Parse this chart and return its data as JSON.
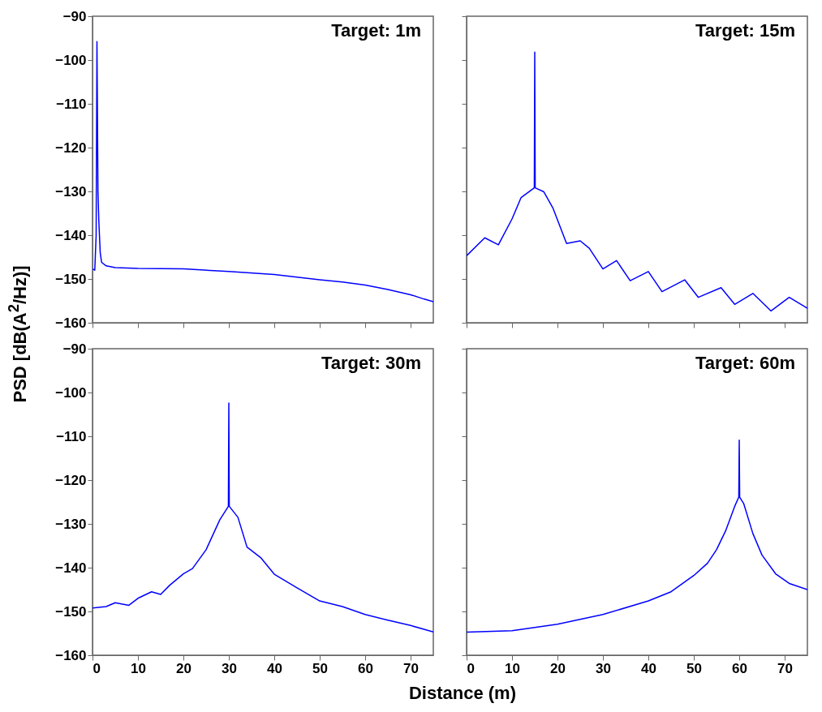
{
  "chart_data": [
    {
      "type": "line",
      "title": "Target: 1m",
      "ylabel": "PSD [dB(A$^{2}$/Hz)]",
      "tick_labels": "y",
      "xlim": [
        0,
        75
      ],
      "ylim": [
        -160,
        -90
      ],
      "xticks": [
        0,
        10,
        20,
        30,
        40,
        50,
        60,
        70
      ],
      "yticks": [
        -160,
        -150,
        -140,
        -130,
        -120,
        -110,
        -100,
        -90
      ],
      "x": [
        0,
        0.5,
        0.8,
        0.98,
        1.2,
        1.4,
        1.7,
        2,
        3,
        5,
        10,
        20,
        30,
        40,
        50,
        55,
        60,
        65,
        70,
        73,
        75
      ],
      "series": [
        {
          "color": "#0000ff",
          "values": [
            -147.7,
            -148,
            -140,
            -95.8,
            -130,
            -137,
            -144,
            -146.2,
            -147,
            -147.4,
            -147.6,
            -147.7,
            -148.3,
            -149,
            -150.2,
            -150.7,
            -151.4,
            -152.4,
            -153.6,
            -154.6,
            -155.2
          ]
        }
      ]
    },
    {
      "type": "line",
      "title": "Target: 15m",
      "tick_labels": false,
      "xlim": [
        0,
        75
      ],
      "ylim": [
        -160,
        -90
      ],
      "xticks": [
        0,
        10,
        20,
        30,
        40,
        50,
        60,
        70
      ],
      "yticks": [
        -160,
        -150,
        -140,
        -130,
        -120,
        -110,
        -100,
        -90
      ],
      "x": [
        0,
        4,
        7,
        10,
        12,
        14.9,
        15,
        15.1,
        17,
        19,
        22,
        25,
        27,
        30,
        33,
        36,
        40,
        43,
        48,
        51,
        56,
        59,
        63,
        67,
        71,
        75
      ],
      "series": [
        {
          "color": "#0000ff",
          "values": [
            -144.7,
            -140.6,
            -142.2,
            -136.3,
            -131.4,
            -129.2,
            -98.2,
            -129.2,
            -130.1,
            -133.8,
            -141.9,
            -141.3,
            -143,
            -147.7,
            -145.8,
            -150.4,
            -148.3,
            -152.9,
            -150.2,
            -154.2,
            -152,
            -155.8,
            -153.3,
            -157.3,
            -154.2,
            -156.7
          ]
        }
      ]
    },
    {
      "type": "line",
      "title": "Target: 30m",
      "xlabel": "Distance (m)",
      "xlim": [
        0,
        75
      ],
      "ylim": [
        -160,
        -90
      ],
      "xticks": [
        0,
        10,
        20,
        30,
        40,
        50,
        60,
        70
      ],
      "yticks": [
        -160,
        -150,
        -140,
        -130,
        -120,
        -110,
        -100,
        -90
      ],
      "x": [
        0,
        3,
        5,
        8,
        10,
        13,
        15,
        17,
        20,
        22,
        25,
        28,
        29.9,
        30,
        30.1,
        32,
        34,
        37,
        40,
        45,
        50,
        55,
        60,
        65,
        70,
        75
      ],
      "series": [
        {
          "color": "#0000ff",
          "values": [
            -149.2,
            -148.9,
            -148,
            -148.6,
            -147,
            -145.5,
            -146.1,
            -144,
            -141.4,
            -140.2,
            -135.9,
            -129.1,
            -126,
            -102.4,
            -126,
            -128.5,
            -135.3,
            -137.7,
            -141.5,
            -144.6,
            -147.6,
            -148.9,
            -150.7,
            -152,
            -153.2,
            -154.7
          ]
        }
      ]
    },
    {
      "type": "line",
      "title": "Target: 60m",
      "tick_labels": "x",
      "xlim": [
        0,
        75
      ],
      "ylim": [
        -160,
        -90
      ],
      "xticks": [
        0,
        10,
        20,
        30,
        40,
        50,
        60,
        70
      ],
      "yticks": [
        -160,
        -150,
        -140,
        -130,
        -120,
        -110,
        -100,
        -90
      ],
      "x": [
        0,
        10,
        20,
        30,
        40,
        45,
        50,
        53,
        55,
        57,
        59,
        59.9,
        60,
        60.1,
        61,
        63,
        65,
        68,
        71,
        75
      ],
      "series": [
        {
          "color": "#0000ff",
          "values": [
            -154.7,
            -154.4,
            -152.9,
            -150.7,
            -147.6,
            -145.5,
            -141.8,
            -139,
            -135.9,
            -131.6,
            -126,
            -123.9,
            -110.9,
            -123.9,
            -125.4,
            -132.2,
            -137.1,
            -141.4,
            -143.6,
            -145
          ]
        }
      ]
    }
  ]
}
